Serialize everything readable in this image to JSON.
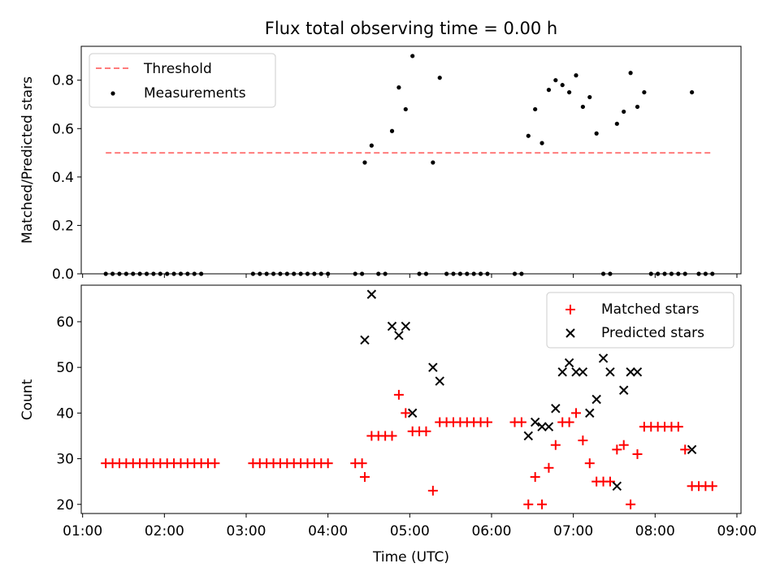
{
  "figure": {
    "title": "Flux total observing time = 0.00 h"
  },
  "chart_data": [
    {
      "type": "scatter",
      "ylabel": "Matched/Predicted stars",
      "xlabel": "",
      "xlim": [
        "00:59",
        "09:03"
      ],
      "ylim": [
        0,
        0.94
      ],
      "yticks": [
        0.0,
        0.2,
        0.4,
        0.6,
        0.8
      ],
      "ytick_labels": [
        "0.0",
        "0.2",
        "0.4",
        "0.6",
        "0.8"
      ],
      "xticks": [
        "01:00",
        "02:00",
        "03:00",
        "04:00",
        "05:00",
        "06:00",
        "07:00",
        "08:00",
        "09:00"
      ],
      "legend_position": "top-left",
      "grid": false,
      "threshold": {
        "name": "Threshold",
        "y": 0.5,
        "x_range": [
          "01:17",
          "08:41"
        ],
        "color": "#ff7b7b",
        "style": "dashed"
      },
      "measurements": {
        "name": "Measurements",
        "color": "#000000",
        "x": [
          "01:17",
          "01:22",
          "01:27",
          "01:32",
          "01:37",
          "01:42",
          "01:47",
          "01:52",
          "01:57",
          "02:02",
          "02:07",
          "02:12",
          "02:17",
          "02:22",
          "02:27",
          "03:05",
          "03:10",
          "03:15",
          "03:20",
          "03:25",
          "03:30",
          "03:35",
          "03:40",
          "03:45",
          "03:50",
          "03:55",
          "04:00",
          "04:20",
          "04:25",
          "04:27",
          "04:32",
          "04:37",
          "04:42",
          "04:47",
          "04:52",
          "04:57",
          "05:02",
          "05:07",
          "05:12",
          "05:17",
          "05:22",
          "05:27",
          "05:32",
          "05:37",
          "05:42",
          "05:47",
          "05:52",
          "05:57",
          "06:17",
          "06:22",
          "06:27",
          "06:32",
          "06:37",
          "06:42",
          "06:47",
          "06:52",
          "06:57",
          "07:02",
          "07:07",
          "07:12",
          "07:17",
          "07:22",
          "07:27",
          "07:32",
          "07:37",
          "07:42",
          "07:47",
          "07:52",
          "07:57",
          "08:02",
          "08:07",
          "08:12",
          "08:17",
          "08:22",
          "08:27",
          "08:32",
          "08:37",
          "08:42"
        ],
        "y": [
          0,
          0,
          0,
          0,
          0,
          0,
          0,
          0,
          0,
          0,
          0,
          0,
          0,
          0,
          0,
          0,
          0,
          0,
          0,
          0,
          0,
          0,
          0,
          0,
          0,
          0,
          0,
          0,
          0,
          0.46,
          0.53,
          0,
          0,
          0.59,
          0.77,
          0.68,
          0.9,
          0,
          0,
          0.46,
          0.81,
          0,
          0,
          0,
          0,
          0,
          0,
          0,
          0,
          0,
          0.57,
          0.68,
          0.54,
          0.76,
          0.8,
          0.78,
          0.75,
          0.82,
          0.69,
          0.73,
          0.58,
          0,
          0,
          0.62,
          0.67,
          0.83,
          0.69,
          0.75,
          0,
          0,
          0,
          0,
          0,
          0,
          0.75,
          0,
          0,
          0
        ]
      }
    },
    {
      "type": "scatter",
      "ylabel": "Count",
      "xlabel": "Time (UTC)",
      "xlim": [
        "00:59",
        "09:03"
      ],
      "ylim": [
        18,
        68
      ],
      "yticks": [
        20,
        30,
        40,
        50,
        60
      ],
      "ytick_labels": [
        "20",
        "30",
        "40",
        "50",
        "60"
      ],
      "xticks": [
        "01:00",
        "02:00",
        "03:00",
        "04:00",
        "05:00",
        "06:00",
        "07:00",
        "08:00",
        "09:00"
      ],
      "legend_position": "top-right",
      "grid": false,
      "series": [
        {
          "name": "Matched stars",
          "marker": "plus",
          "color": "#ff0000",
          "x": [
            "01:17",
            "01:22",
            "01:27",
            "01:32",
            "01:37",
            "01:42",
            "01:47",
            "01:52",
            "01:57",
            "02:02",
            "02:07",
            "02:12",
            "02:17",
            "02:22",
            "02:27",
            "02:32",
            "02:37",
            "03:05",
            "03:10",
            "03:15",
            "03:20",
            "03:25",
            "03:30",
            "03:35",
            "03:40",
            "03:45",
            "03:50",
            "03:55",
            "04:00",
            "04:20",
            "04:25",
            "04:27",
            "04:32",
            "04:37",
            "04:42",
            "04:47",
            "04:52",
            "04:57",
            "05:02",
            "05:07",
            "05:12",
            "05:17",
            "05:22",
            "05:27",
            "05:32",
            "05:37",
            "05:42",
            "05:47",
            "05:52",
            "05:57",
            "06:17",
            "06:22",
            "06:27",
            "06:32",
            "06:37",
            "06:42",
            "06:47",
            "06:52",
            "06:57",
            "07:02",
            "07:07",
            "07:12",
            "07:17",
            "07:22",
            "07:27",
            "07:32",
            "07:37",
            "07:42",
            "07:47",
            "07:52",
            "07:57",
            "08:02",
            "08:07",
            "08:12",
            "08:17",
            "08:22",
            "08:27",
            "08:32",
            "08:37",
            "08:42"
          ],
          "y": [
            29,
            29,
            29,
            29,
            29,
            29,
            29,
            29,
            29,
            29,
            29,
            29,
            29,
            29,
            29,
            29,
            29,
            29,
            29,
            29,
            29,
            29,
            29,
            29,
            29,
            29,
            29,
            29,
            29,
            29,
            29,
            26,
            35,
            35,
            35,
            35,
            44,
            40,
            36,
            36,
            36,
            23,
            38,
            38,
            38,
            38,
            38,
            38,
            38,
            38,
            38,
            38,
            20,
            26,
            20,
            28,
            33,
            38,
            38,
            40,
            34,
            29,
            25,
            25,
            25,
            32,
            33,
            20,
            31,
            37,
            37,
            37,
            37,
            37,
            37,
            32,
            24,
            24,
            24,
            24
          ]
        },
        {
          "name": "Predicted stars",
          "marker": "x",
          "color": "#000000",
          "x": [
            "04:27",
            "04:32",
            "04:47",
            "04:52",
            "04:57",
            "05:02",
            "05:17",
            "05:22",
            "06:27",
            "06:32",
            "06:37",
            "06:42",
            "06:47",
            "06:52",
            "06:57",
            "07:02",
            "07:07",
            "07:12",
            "07:17",
            "07:22",
            "07:27",
            "07:32",
            "07:37",
            "07:42",
            "07:47",
            "08:27"
          ],
          "y": [
            56,
            66,
            59,
            57,
            59,
            40,
            50,
            47,
            35,
            38,
            37,
            37,
            41,
            49,
            51,
            49,
            49,
            40,
            43,
            52,
            49,
            24,
            45,
            49,
            49,
            32
          ]
        }
      ]
    }
  ]
}
